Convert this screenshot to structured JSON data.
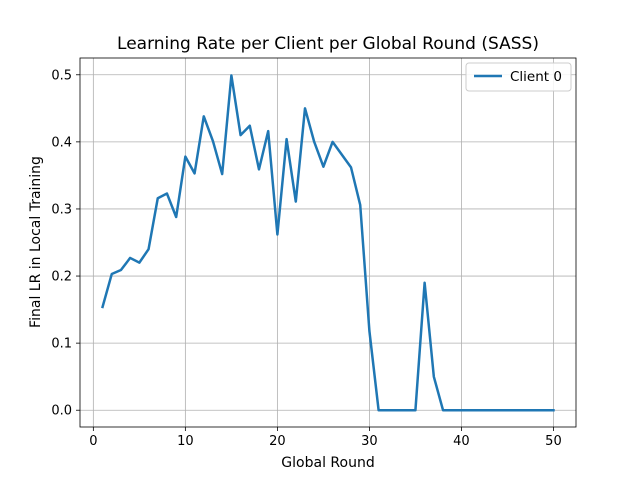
{
  "chart_data": {
    "type": "line",
    "title": "Learning Rate per Client per Global Round (SASS)",
    "xlabel": "Global Round",
    "ylabel": "Final LR in Local Training",
    "xlim": [
      -1.45,
      52.45
    ],
    "ylim": [
      -0.025,
      0.525
    ],
    "xticks": [
      0,
      10,
      20,
      30,
      40,
      50
    ],
    "yticks": [
      0.0,
      0.1,
      0.2,
      0.3,
      0.4,
      0.5
    ],
    "ytick_labels": [
      "0.0",
      "0.1",
      "0.2",
      "0.3",
      "0.4",
      "0.5"
    ],
    "grid": true,
    "legend_position": "top-right",
    "series": [
      {
        "name": "Client 0",
        "color": "#1f77b4",
        "x": [
          1,
          2,
          3,
          4,
          5,
          6,
          7,
          8,
          9,
          10,
          11,
          12,
          13,
          14,
          15,
          16,
          17,
          18,
          19,
          20,
          21,
          22,
          23,
          24,
          25,
          26,
          27,
          28,
          29,
          30,
          31,
          32,
          33,
          34,
          35,
          36,
          37,
          38,
          39,
          40,
          41,
          42,
          43,
          44,
          45,
          46,
          47,
          48,
          49,
          50
        ],
        "values": [
          0.154,
          0.203,
          0.209,
          0.227,
          0.22,
          0.24,
          0.316,
          0.323,
          0.288,
          0.378,
          0.353,
          0.438,
          0.401,
          0.352,
          0.499,
          0.41,
          0.424,
          0.359,
          0.416,
          0.262,
          0.404,
          0.311,
          0.45,
          0.4,
          0.363,
          0.4,
          0.381,
          0.362,
          0.306,
          0.118,
          0.0,
          0.0,
          0.0,
          0.0,
          0.0,
          0.19,
          0.05,
          0.0,
          0.0,
          0.0,
          0.0,
          0.0,
          0.0,
          0.0,
          0.0,
          0.0,
          0.0,
          0.0,
          0.0,
          0.0
        ]
      }
    ]
  }
}
